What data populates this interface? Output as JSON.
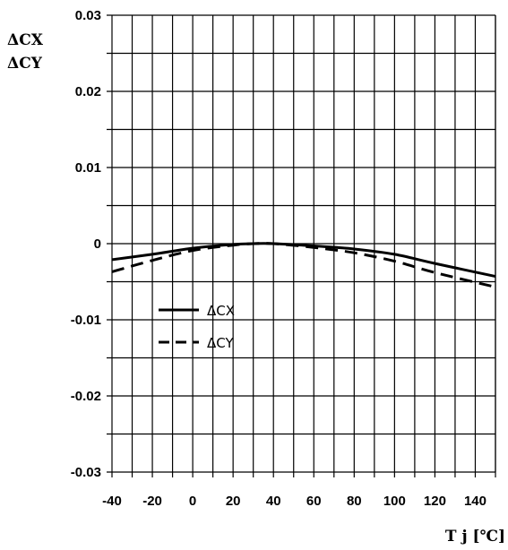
{
  "chart_data": {
    "type": "line",
    "ylabel_lines": [
      "ΔCX",
      "ΔCY"
    ],
    "xlabel": "T j [℃]",
    "xlim": [
      -40,
      150
    ],
    "ylim": [
      -0.03,
      0.03
    ],
    "x_major_step": 20,
    "x_minor_step": 10,
    "y_major_step": 0.01,
    "y_minor_step": 0.005,
    "x_ticks": [
      "-40",
      "-20",
      "0",
      "20",
      "40",
      "60",
      "80",
      "100",
      "120",
      "140"
    ],
    "y_ticks": [
      "0.03",
      "0.02",
      "0.01",
      "0",
      "-0.01",
      "-0.02",
      "-0.03"
    ],
    "grid": true,
    "legend_position": "center-left",
    "series": [
      {
        "name": "ΔCX",
        "style": "solid",
        "color": "#000000",
        "x": [
          -40,
          -20,
          0,
          20,
          30,
          40,
          60,
          80,
          100,
          120,
          150
        ],
        "y": [
          -0.0021,
          -0.0014,
          -0.0006,
          -0.0001,
          0.0,
          0.0,
          -0.0003,
          -0.0007,
          -0.0014,
          -0.0026,
          -0.0043
        ]
      },
      {
        "name": "ΔCY",
        "style": "dashed",
        "color": "#000000",
        "x": [
          -40,
          -20,
          0,
          20,
          30,
          40,
          60,
          80,
          100,
          120,
          150
        ],
        "y": [
          -0.0037,
          -0.0022,
          -0.0009,
          -0.0002,
          0.0,
          0.0,
          -0.0005,
          -0.0012,
          -0.0023,
          -0.0038,
          -0.0057
        ]
      }
    ]
  }
}
